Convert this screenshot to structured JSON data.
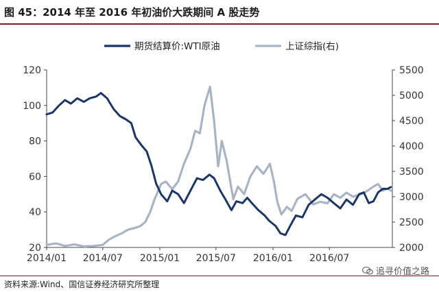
{
  "header": {
    "title": "图 45：2014 年至 2016 年初油价大跌期间 A 股走势"
  },
  "footer": {
    "source": "资料来源:Wind、国信证券经济研究所整理",
    "watermark": "追寻价值之路"
  },
  "colors": {
    "oil": "#1b3566",
    "index": "#a8b4c4",
    "rule": "#7a1f1f"
  },
  "chart_data": {
    "type": "line",
    "x_ticks": [
      "2014/01",
      "2014/07",
      "2015/01",
      "2015/07",
      "2016/01",
      "2016/07"
    ],
    "y_left": {
      "ylim": [
        20,
        120
      ],
      "ticks": [
        20,
        40,
        60,
        80,
        100,
        120
      ]
    },
    "y_right": {
      "ylim": [
        2000,
        5500
      ],
      "ticks": [
        2000,
        2500,
        3000,
        3500,
        4000,
        4500,
        5000,
        5500
      ]
    },
    "legend_position": "top-center",
    "grid": false,
    "series": [
      {
        "name": "期货结算价:WTI原油",
        "axis": "left",
        "color": "#1b3566",
        "points": [
          [
            "2014-01-01",
            95
          ],
          [
            "2014-01-20",
            96
          ],
          [
            "2014-02-10",
            100
          ],
          [
            "2014-03-01",
            103
          ],
          [
            "2014-03-20",
            101
          ],
          [
            "2014-04-10",
            104
          ],
          [
            "2014-05-01",
            102
          ],
          [
            "2014-05-20",
            104
          ],
          [
            "2014-06-10",
            105
          ],
          [
            "2014-06-25",
            107
          ],
          [
            "2014-07-15",
            104
          ],
          [
            "2014-08-05",
            98
          ],
          [
            "2014-08-25",
            94
          ],
          [
            "2014-09-15",
            92
          ],
          [
            "2014-10-01",
            90
          ],
          [
            "2014-10-15",
            82
          ],
          [
            "2014-11-01",
            78
          ],
          [
            "2014-11-20",
            74
          ],
          [
            "2014-12-05",
            66
          ],
          [
            "2014-12-20",
            56
          ],
          [
            "2015-01-05",
            50
          ],
          [
            "2015-01-25",
            46
          ],
          [
            "2015-02-10",
            52
          ],
          [
            "2015-03-01",
            50
          ],
          [
            "2015-03-20",
            45
          ],
          [
            "2015-04-10",
            52
          ],
          [
            "2015-05-01",
            59
          ],
          [
            "2015-05-20",
            58
          ],
          [
            "2015-06-10",
            61
          ],
          [
            "2015-06-25",
            59
          ],
          [
            "2015-07-15",
            52
          ],
          [
            "2015-08-01",
            47
          ],
          [
            "2015-08-20",
            41
          ],
          [
            "2015-09-05",
            46
          ],
          [
            "2015-09-25",
            45
          ],
          [
            "2015-10-10",
            48
          ],
          [
            "2015-10-25",
            45
          ],
          [
            "2015-11-15",
            41
          ],
          [
            "2015-12-05",
            38
          ],
          [
            "2015-12-20",
            35
          ],
          [
            "2016-01-10",
            32
          ],
          [
            "2016-01-25",
            28
          ],
          [
            "2016-02-10",
            27
          ],
          [
            "2016-02-25",
            32
          ],
          [
            "2016-03-15",
            38
          ],
          [
            "2016-04-05",
            37
          ],
          [
            "2016-04-25",
            44
          ],
          [
            "2016-05-15",
            47
          ],
          [
            "2016-06-05",
            50
          ],
          [
            "2016-06-25",
            48
          ],
          [
            "2016-07-15",
            45
          ],
          [
            "2016-08-05",
            42
          ],
          [
            "2016-08-25",
            47
          ],
          [
            "2016-09-15",
            44
          ],
          [
            "2016-10-05",
            50
          ],
          [
            "2016-10-20",
            51
          ],
          [
            "2016-11-05",
            45
          ],
          [
            "2016-11-20",
            46
          ],
          [
            "2016-12-05",
            51
          ],
          [
            "2016-12-20",
            53
          ],
          [
            "2017-01-05",
            53
          ],
          [
            "2017-01-15",
            54
          ]
        ]
      },
      {
        "name": "上证综指(右)",
        "axis": "right",
        "color": "#a8b4c4",
        "points": [
          [
            "2014-01-01",
            2050
          ],
          [
            "2014-02-01",
            2080
          ],
          [
            "2014-03-01",
            2030
          ],
          [
            "2014-04-01",
            2060
          ],
          [
            "2014-05-01",
            2020
          ],
          [
            "2014-06-01",
            2030
          ],
          [
            "2014-07-01",
            2050
          ],
          [
            "2014-07-20",
            2150
          ],
          [
            "2014-08-10",
            2220
          ],
          [
            "2014-09-01",
            2280
          ],
          [
            "2014-09-20",
            2350
          ],
          [
            "2014-10-10",
            2380
          ],
          [
            "2014-10-30",
            2420
          ],
          [
            "2014-11-15",
            2500
          ],
          [
            "2014-12-01",
            2700
          ],
          [
            "2014-12-15",
            2950
          ],
          [
            "2015-01-05",
            3250
          ],
          [
            "2015-01-20",
            3300
          ],
          [
            "2015-02-10",
            3150
          ],
          [
            "2015-03-01",
            3300
          ],
          [
            "2015-03-20",
            3650
          ],
          [
            "2015-04-10",
            3950
          ],
          [
            "2015-04-25",
            4300
          ],
          [
            "2015-05-10",
            4250
          ],
          [
            "2015-05-25",
            4800
          ],
          [
            "2015-06-12",
            5170
          ],
          [
            "2015-06-25",
            4500
          ],
          [
            "2015-07-08",
            3600
          ],
          [
            "2015-07-20",
            4100
          ],
          [
            "2015-08-05",
            3700
          ],
          [
            "2015-08-26",
            2950
          ],
          [
            "2015-09-10",
            3200
          ],
          [
            "2015-09-30",
            3050
          ],
          [
            "2015-10-20",
            3400
          ],
          [
            "2015-11-10",
            3600
          ],
          [
            "2015-12-01",
            3450
          ],
          [
            "2015-12-22",
            3650
          ],
          [
            "2016-01-04",
            3300
          ],
          [
            "2016-01-15",
            2900
          ],
          [
            "2016-01-28",
            2650
          ],
          [
            "2016-02-15",
            2800
          ],
          [
            "2016-03-01",
            2720
          ],
          [
            "2016-03-20",
            2960
          ],
          [
            "2016-04-15",
            3050
          ],
          [
            "2016-05-10",
            2850
          ],
          [
            "2016-06-01",
            2900
          ],
          [
            "2016-06-25",
            2870
          ],
          [
            "2016-07-15",
            3050
          ],
          [
            "2016-08-05",
            2980
          ],
          [
            "2016-08-25",
            3080
          ],
          [
            "2016-09-15",
            3000
          ],
          [
            "2016-10-10",
            3050
          ],
          [
            "2016-10-30",
            3110
          ],
          [
            "2016-11-20",
            3200
          ],
          [
            "2016-12-05",
            3250
          ],
          [
            "2016-12-20",
            3120
          ],
          [
            "2017-01-05",
            3160
          ],
          [
            "2017-01-15",
            3120
          ]
        ]
      }
    ]
  }
}
